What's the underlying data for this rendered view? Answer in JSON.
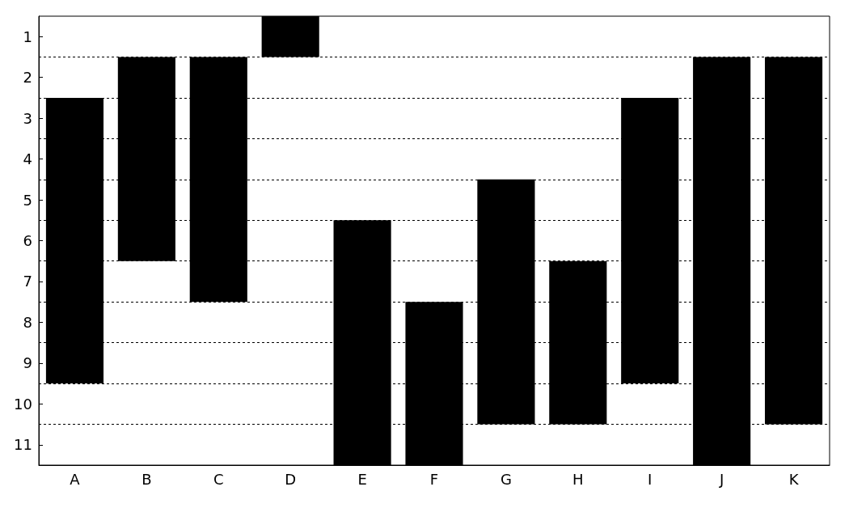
{
  "chart_data": {
    "type": "bar",
    "categories": [
      "A",
      "B",
      "C",
      "D",
      "E",
      "F",
      "G",
      "H",
      "I",
      "J",
      "K"
    ],
    "base": [
      2.5,
      1.5,
      1.5,
      0.5,
      5.5,
      7.5,
      4.5,
      6.5,
      2.5,
      1.5,
      1.5
    ],
    "values": [
      7,
      5,
      6,
      1,
      6,
      4,
      6,
      4,
      7,
      10,
      9
    ],
    "color": "#000000",
    "ylim": [
      11.5,
      0.5
    ],
    "yticks": [
      1,
      2,
      3,
      4,
      5,
      6,
      7,
      8,
      9,
      10,
      11
    ],
    "ref_lines": [
      {
        "axis": "y",
        "value": 1.5,
        "color": "#000000",
        "line_style": "dashed"
      },
      {
        "axis": "y",
        "value": 2.5,
        "color": "#000000",
        "line_style": "dashed"
      },
      {
        "axis": "y",
        "value": 3.5,
        "color": "#000000",
        "line_style": "dashed"
      },
      {
        "axis": "y",
        "value": 4.5,
        "color": "#000000",
        "line_style": "dashed"
      },
      {
        "axis": "y",
        "value": 5.5,
        "color": "#000000",
        "line_style": "dashed"
      },
      {
        "axis": "y",
        "value": 6.5,
        "color": "#000000",
        "line_style": "dashed"
      },
      {
        "axis": "y",
        "value": 7.5,
        "color": "#000000",
        "line_style": "dashed"
      },
      {
        "axis": "y",
        "value": 8.5,
        "color": "#000000",
        "line_style": "dashed"
      },
      {
        "axis": "y",
        "value": 9.5,
        "color": "#000000",
        "line_style": "dashed"
      },
      {
        "axis": "y",
        "value": 10.5,
        "color": "#000000",
        "line_style": "dashed"
      }
    ]
  }
}
